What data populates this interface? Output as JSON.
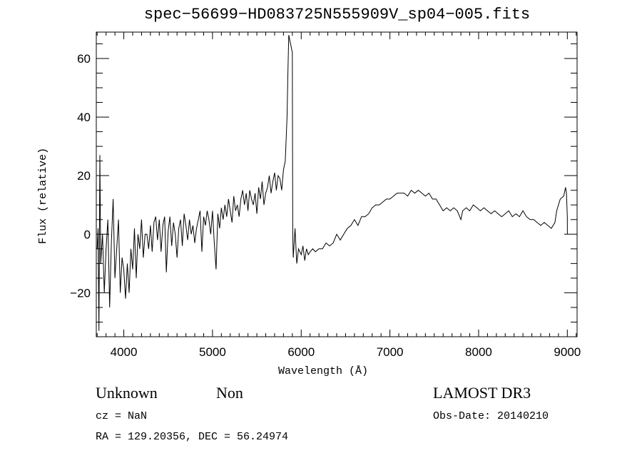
{
  "chart_data": {
    "type": "line",
    "title": "spec−56699−HD083725N555909V_sp04−005.fits",
    "xlabel": "Wavelength (Å)",
    "ylabel": "Flux (relative)",
    "xlim": [
      3690,
      9110
    ],
    "ylim": [
      -35,
      69
    ],
    "xticks": [
      4000,
      5000,
      6000,
      7000,
      8000,
      9000
    ],
    "xtick_labels": [
      "4000",
      "5000",
      "6000",
      "7000",
      "8000",
      "9000"
    ],
    "yticks": [
      -20,
      0,
      20,
      40,
      60
    ],
    "ytick_labels": [
      "−20",
      "0",
      "20",
      "40",
      "60"
    ],
    "grid": false,
    "series": [
      {
        "name": "spectrum",
        "color": "#000000",
        "x": [
          3700,
          3710,
          3720,
          3730,
          3740,
          3760,
          3780,
          3800,
          3820,
          3840,
          3860,
          3880,
          3900,
          3920,
          3940,
          3960,
          3980,
          4000,
          4020,
          4040,
          4060,
          4080,
          4100,
          4120,
          4140,
          4160,
          4180,
          4200,
          4220,
          4240,
          4260,
          4280,
          4300,
          4320,
          4340,
          4360,
          4380,
          4400,
          4420,
          4440,
          4460,
          4480,
          4500,
          4520,
          4540,
          4560,
          4580,
          4600,
          4620,
          4640,
          4660,
          4680,
          4700,
          4720,
          4740,
          4760,
          4780,
          4800,
          4820,
          4840,
          4860,
          4880,
          4900,
          4920,
          4940,
          4960,
          4980,
          5000,
          5020,
          5040,
          5060,
          5080,
          5100,
          5120,
          5140,
          5160,
          5180,
          5200,
          5220,
          5240,
          5260,
          5280,
          5300,
          5320,
          5340,
          5360,
          5380,
          5400,
          5420,
          5440,
          5460,
          5480,
          5500,
          5520,
          5540,
          5560,
          5580,
          5600,
          5620,
          5640,
          5660,
          5680,
          5700,
          5720,
          5740,
          5760,
          5780,
          5800,
          5820,
          5840,
          5850,
          5860,
          5880,
          5900,
          5905,
          5910,
          5930,
          5950,
          5970,
          6000,
          6020,
          6040,
          6060,
          6080,
          6100,
          6130,
          6160,
          6200,
          6240,
          6280,
          6320,
          6360,
          6400,
          6440,
          6480,
          6520,
          6560,
          6600,
          6640,
          6680,
          6720,
          6760,
          6800,
          6840,
          6880,
          6920,
          6960,
          7000,
          7040,
          7080,
          7120,
          7160,
          7200,
          7240,
          7280,
          7320,
          7360,
          7400,
          7440,
          7480,
          7520,
          7560,
          7600,
          7640,
          7680,
          7720,
          7760,
          7800,
          7820,
          7860,
          7900,
          7940,
          7980,
          8020,
          8060,
          8100,
          8140,
          8180,
          8220,
          8260,
          8300,
          8340,
          8380,
          8420,
          8460,
          8500,
          8540,
          8580,
          8620,
          8660,
          8700,
          8740,
          8780,
          8820,
          8860,
          8880,
          8920,
          8960,
          8980,
          8990,
          9000,
          9001
        ],
        "y": [
          -5,
          2,
          -33,
          27,
          -10,
          0,
          -20,
          -5,
          5,
          -25,
          -3,
          12,
          -15,
          -5,
          5,
          -20,
          -8,
          -12,
          -22,
          -10,
          -20,
          -5,
          -12,
          2,
          -15,
          0,
          -5,
          5,
          -8,
          0,
          0,
          -5,
          3,
          -6,
          4,
          6,
          -2,
          5,
          -6,
          3,
          6,
          -13,
          1,
          6,
          -4,
          4,
          0,
          -8,
          2,
          5,
          -4,
          7,
          3,
          -2,
          5,
          0,
          3,
          -3,
          2,
          5,
          8,
          -6,
          6,
          3,
          8,
          5,
          0,
          8,
          -3,
          -12,
          7,
          2,
          9,
          5,
          10,
          6,
          12,
          8,
          4,
          13,
          8,
          10,
          6,
          12,
          15,
          10,
          14,
          8,
          15,
          12,
          10,
          14,
          7,
          16,
          12,
          18,
          10,
          14,
          16,
          20,
          14,
          18,
          21,
          15,
          20,
          19,
          15,
          22,
          25,
          40,
          55,
          68,
          65,
          62,
          0,
          -8,
          2,
          -10,
          -5,
          -7,
          -4,
          -9,
          -5,
          -7,
          -6,
          -5,
          -6,
          -5,
          -5,
          -3,
          -4,
          -3,
          0,
          -2,
          0,
          2,
          3,
          5,
          3,
          6,
          6,
          7,
          9,
          10,
          10,
          11,
          12,
          12,
          13,
          14,
          14,
          14,
          13,
          15,
          14,
          15,
          14,
          13,
          14,
          12,
          12,
          10,
          8,
          9,
          8,
          9,
          8,
          5,
          8,
          9,
          8,
          10,
          9,
          8,
          9,
          8,
          7,
          8,
          7,
          6,
          7,
          8,
          6,
          7,
          6,
          8,
          6,
          5,
          5,
          4,
          3,
          4,
          3,
          2,
          4,
          8,
          12,
          13,
          16,
          14,
          6,
          0
        ]
      }
    ]
  },
  "footer": {
    "object_class": "Unknown",
    "subclass": "Non",
    "survey": "LAMOST DR3",
    "cz": "cz = NaN",
    "obs_date": "Obs-Date: 20140210",
    "coords": "RA = 129.20356, DEC =  56.24974"
  }
}
